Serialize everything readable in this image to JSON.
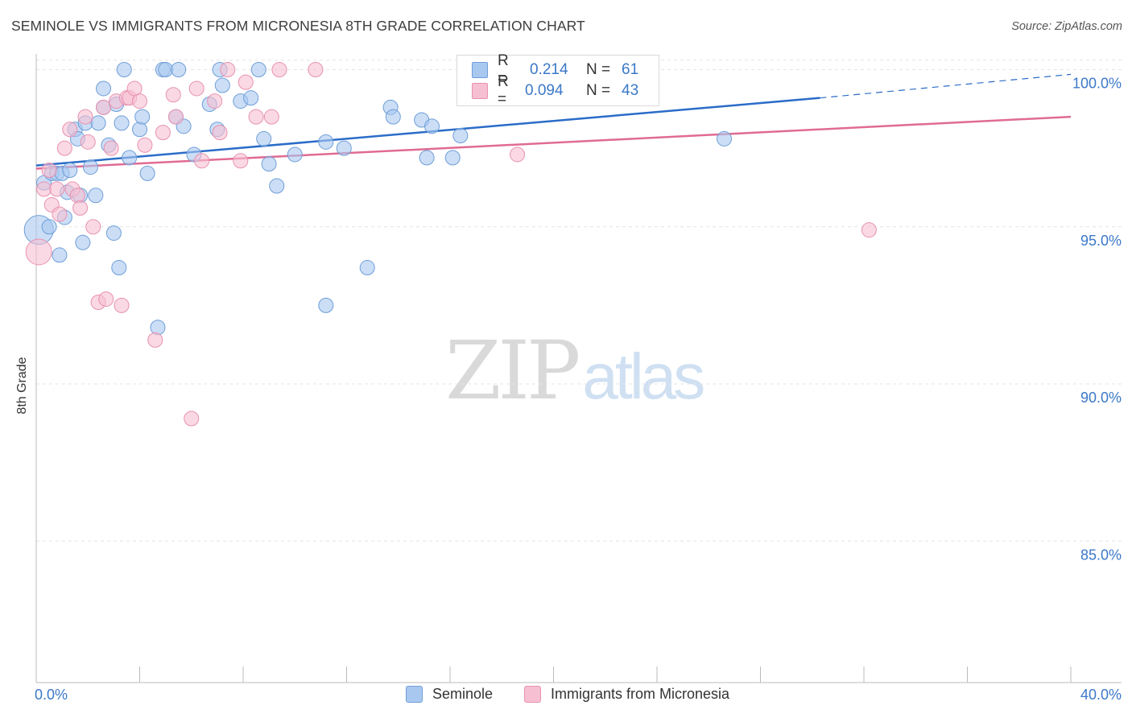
{
  "header": {
    "title": "SEMINOLE VS IMMIGRANTS FROM MICRONESIA 8TH GRADE CORRELATION CHART",
    "source": "Source: ZipAtlas.com"
  },
  "watermark": {
    "zip": "ZIP",
    "atlas": "atlas"
  },
  "legend_top": {
    "rows": [
      {
        "r_label": "R =",
        "r_value": "0.214",
        "n_label": "N =",
        "n_value": "61"
      },
      {
        "r_label": "R =",
        "r_value": "0.094",
        "n_label": "N =",
        "n_value": "43"
      }
    ]
  },
  "legend_bottom": {
    "items": [
      {
        "label": "Seminole"
      },
      {
        "label": "Immigrants from Micronesia"
      }
    ]
  },
  "colors": {
    "seminole_fill": "#a9c8f0",
    "seminole_stroke": "#6f9ed8",
    "seminole_line": "#2b6cc8",
    "micronesia_fill": "#f7bfd2",
    "micronesia_stroke": "#e891b0",
    "micronesia_line": "#e06b93",
    "axis_label": "#3b78c8",
    "grid": "#e6e6e6"
  },
  "chart_data": {
    "type": "scatter",
    "title": "SEMINOLE VS IMMIGRANTS FROM MICRONESIA 8TH GRADE CORRELATION CHART",
    "xlabel": "",
    "ylabel": "8th Grade",
    "xlim": [
      0,
      40
    ],
    "ylim": [
      80.5,
      100.5
    ],
    "x_tick_labels": [
      "0.0%",
      "40.0%"
    ],
    "y_ticks": [
      85,
      90,
      95,
      100
    ],
    "y_tick_labels": [
      "85.0%",
      "90.0%",
      "95.0%",
      "100.0%"
    ],
    "grid": true,
    "series": [
      {
        "name": "Seminole",
        "r": 0.214,
        "n": 61,
        "trend": {
          "x0": 0,
          "y0": 96.95,
          "x1": 30.3,
          "y1": 99.1,
          "dash_to_x": 40,
          "dash_to_y": 99.85
        },
        "points": [
          [
            0.1,
            94.9,
            18
          ],
          [
            0.3,
            96.4,
            9
          ],
          [
            0.5,
            95.0,
            9
          ],
          [
            0.6,
            96.7,
            9
          ],
          [
            0.8,
            96.7,
            9
          ],
          [
            0.9,
            94.1,
            9
          ],
          [
            1.0,
            96.7,
            9
          ],
          [
            1.1,
            95.3,
            9
          ],
          [
            1.2,
            96.1,
            9
          ],
          [
            1.3,
            96.8,
            9
          ],
          [
            1.5,
            98.1,
            9
          ],
          [
            1.6,
            97.8,
            9
          ],
          [
            1.8,
            94.5,
            9
          ],
          [
            1.7,
            96.0,
            9
          ],
          [
            1.9,
            98.3,
            9
          ],
          [
            2.1,
            96.9,
            9
          ],
          [
            2.3,
            96.0,
            9
          ],
          [
            2.4,
            98.3,
            9
          ],
          [
            2.6,
            98.8,
            9
          ],
          [
            2.6,
            99.4,
            9
          ],
          [
            2.8,
            97.6,
            9
          ],
          [
            3.0,
            94.8,
            9
          ],
          [
            3.1,
            98.9,
            9
          ],
          [
            3.2,
            93.7,
            9
          ],
          [
            3.3,
            98.3,
            9
          ],
          [
            3.4,
            100.0,
            9
          ],
          [
            3.6,
            97.2,
            9
          ],
          [
            4.0,
            98.1,
            9
          ],
          [
            4.1,
            98.5,
            9
          ],
          [
            4.3,
            96.7,
            9
          ],
          [
            4.7,
            91.8,
            9
          ],
          [
            4.9,
            100.0,
            9
          ],
          [
            5.0,
            100.0,
            9
          ],
          [
            5.4,
            98.5,
            9
          ],
          [
            5.5,
            100.0,
            9
          ],
          [
            5.7,
            98.2,
            9
          ],
          [
            6.1,
            97.3,
            9
          ],
          [
            6.7,
            98.9,
            9
          ],
          [
            7.0,
            98.1,
            9
          ],
          [
            7.1,
            100.0,
            9
          ],
          [
            7.2,
            99.5,
            9
          ],
          [
            7.9,
            99.0,
            9
          ],
          [
            8.3,
            99.1,
            9
          ],
          [
            8.6,
            100.0,
            9
          ],
          [
            8.8,
            97.8,
            9
          ],
          [
            9.0,
            97.0,
            9
          ],
          [
            9.3,
            96.3,
            9
          ],
          [
            10.0,
            97.3,
            9
          ],
          [
            11.2,
            97.7,
            9
          ],
          [
            11.2,
            92.5,
            9
          ],
          [
            11.9,
            97.5,
            9
          ],
          [
            12.8,
            93.7,
            9
          ],
          [
            13.7,
            98.8,
            9
          ],
          [
            13.8,
            98.5,
            9
          ],
          [
            14.9,
            98.4,
            9
          ],
          [
            15.1,
            97.2,
            9
          ],
          [
            15.3,
            98.2,
            9
          ],
          [
            16.1,
            97.2,
            9
          ],
          [
            16.4,
            97.9,
            9
          ],
          [
            17.2,
            100.0,
            9
          ],
          [
            26.6,
            97.8,
            9
          ]
        ]
      },
      {
        "name": "Immigrants from Micronesia",
        "r": 0.094,
        "n": 43,
        "trend": {
          "x0": 0,
          "y0": 96.85,
          "x1": 40,
          "y1": 98.5
        },
        "points": [
          [
            0.1,
            94.2,
            16
          ],
          [
            0.3,
            96.2,
            9
          ],
          [
            0.5,
            96.8,
            9
          ],
          [
            0.6,
            95.7,
            9
          ],
          [
            0.8,
            96.2,
            9
          ],
          [
            0.9,
            95.4,
            9
          ],
          [
            1.1,
            97.5,
            9
          ],
          [
            1.3,
            98.1,
            9
          ],
          [
            1.4,
            96.2,
            9
          ],
          [
            1.6,
            96.0,
            9
          ],
          [
            1.7,
            95.6,
            9
          ],
          [
            1.9,
            98.5,
            9
          ],
          [
            2.0,
            97.7,
            9
          ],
          [
            2.2,
            95.0,
            9
          ],
          [
            2.4,
            92.6,
            9
          ],
          [
            2.6,
            98.8,
            9
          ],
          [
            2.7,
            92.7,
            9
          ],
          [
            2.9,
            97.5,
            9
          ],
          [
            3.1,
            99.0,
            9
          ],
          [
            3.3,
            92.5,
            9
          ],
          [
            3.5,
            99.1,
            9
          ],
          [
            3.6,
            99.1,
            9
          ],
          [
            3.8,
            99.4,
            9
          ],
          [
            4.0,
            99.0,
            9
          ],
          [
            4.2,
            97.6,
            9
          ],
          [
            4.6,
            91.4,
            9
          ],
          [
            4.9,
            98.0,
            9
          ],
          [
            5.3,
            99.2,
            9
          ],
          [
            5.4,
            98.5,
            9
          ],
          [
            6.2,
            99.4,
            9
          ],
          [
            6.4,
            97.1,
            9
          ],
          [
            6.9,
            99.0,
            9
          ],
          [
            7.1,
            98.0,
            9
          ],
          [
            7.4,
            100.0,
            9
          ],
          [
            7.9,
            97.1,
            9
          ],
          [
            8.1,
            99.6,
            9
          ],
          [
            8.5,
            98.5,
            9
          ],
          [
            9.1,
            98.5,
            9
          ],
          [
            9.4,
            100.0,
            9
          ],
          [
            10.8,
            100.0,
            9
          ],
          [
            6.0,
            88.9,
            9
          ],
          [
            18.6,
            97.3,
            9
          ],
          [
            32.2,
            94.9,
            9
          ]
        ]
      }
    ]
  }
}
